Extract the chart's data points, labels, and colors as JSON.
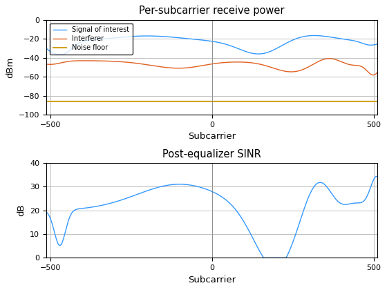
{
  "title1": "Per-subcarrier receive power",
  "xlabel1": "Subcarrier",
  "ylabel1": "dBm",
  "ylim1": [
    -100,
    0
  ],
  "yticks1": [
    0,
    -20,
    -40,
    -60,
    -80,
    -100
  ],
  "xlim": [
    -512,
    512
  ],
  "xticks": [
    -500,
    0,
    500
  ],
  "title2": "Post-equalizer SINR",
  "xlabel2": "Subcarrier",
  "ylabel2": "dB",
  "ylim2": [
    0,
    40
  ],
  "yticks2": [
    0,
    10,
    20,
    30,
    40
  ],
  "legend_labels": [
    "Signal of interest",
    "Interferer",
    "Noise floor"
  ],
  "line_colors": [
    "#3399FF",
    "#E06020",
    "#D4A020"
  ],
  "sinr_color": "#3399FF",
  "noise_level": -86.0,
  "bg_color": "#FFFFFF",
  "grid_color": "#C0C0C0"
}
